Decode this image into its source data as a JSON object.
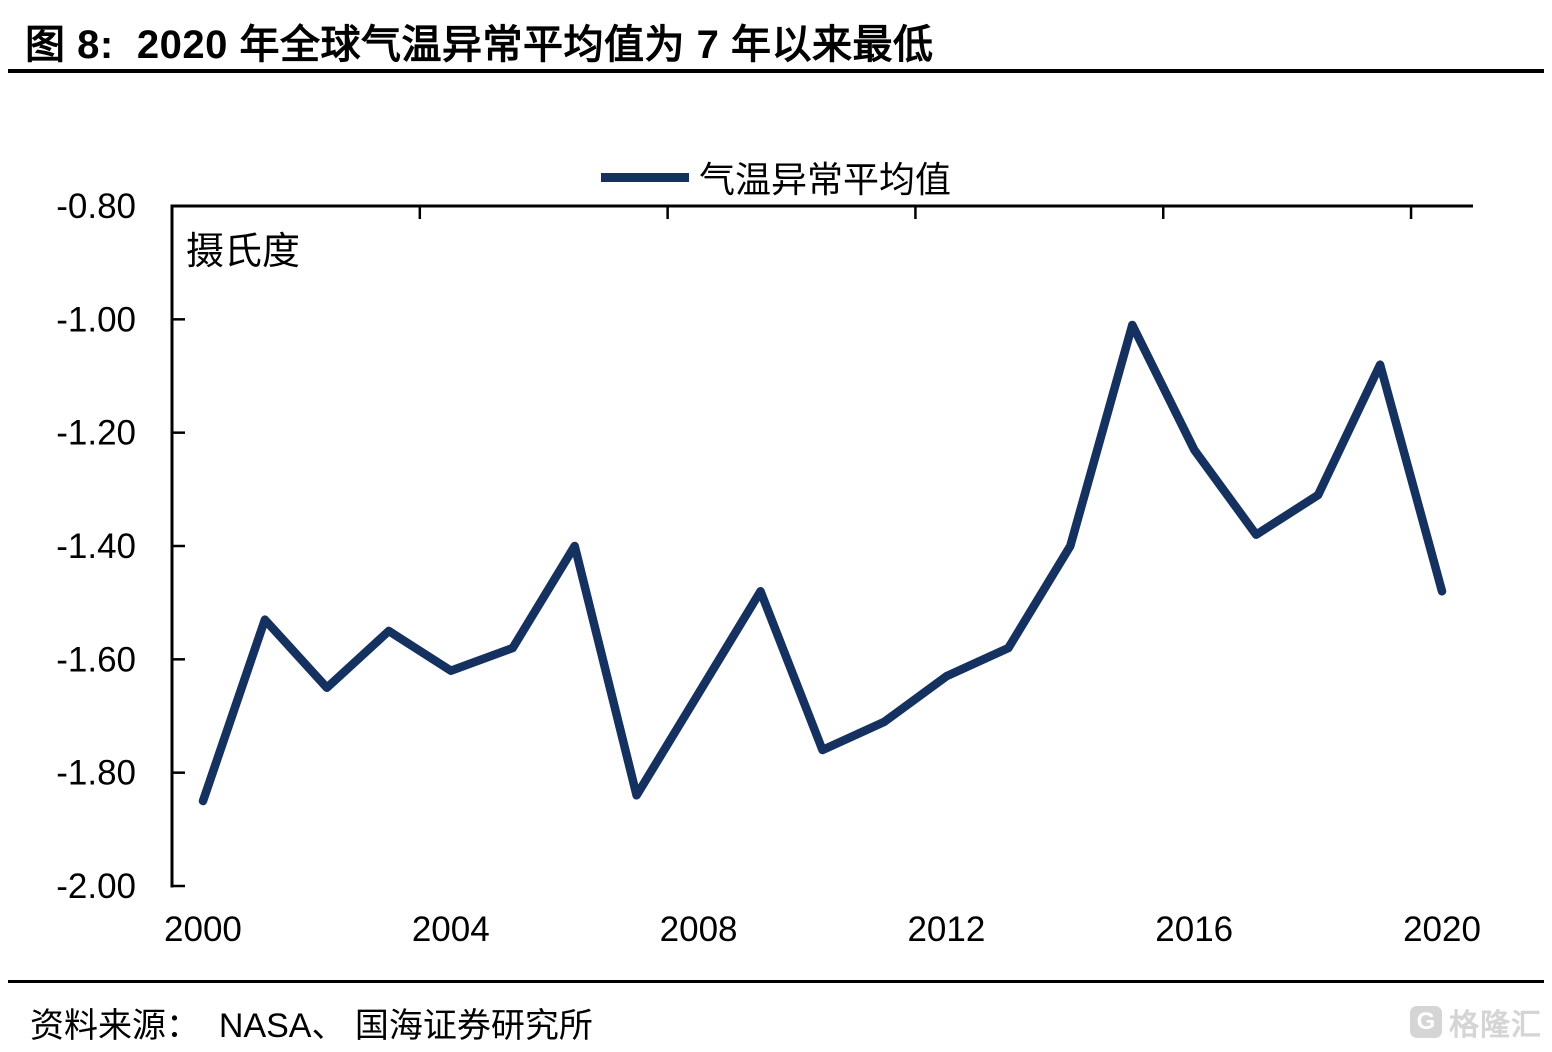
{
  "header": {
    "title": "图 8:  2020 年全球气温异常平均值为 7 年以来最低"
  },
  "footer": {
    "source": "资料来源：  NASA、 国海证券研究所",
    "logo_letter": "G",
    "logo_text": "格隆汇"
  },
  "chart_data": {
    "type": "line",
    "title": "图 8:  2020 年全球气温异常平均值为 7 年以来最低",
    "ylabel": "摄氏度",
    "xlabel": "",
    "x": [
      2000,
      2001,
      2002,
      2003,
      2004,
      2005,
      2006,
      2007,
      2008,
      2009,
      2010,
      2011,
      2012,
      2013,
      2014,
      2015,
      2016,
      2017,
      2018,
      2019,
      2020
    ],
    "series": [
      {
        "name": "气温异常平均值",
        "values": [
          -1.85,
          -1.53,
          -1.65,
          -1.55,
          -1.62,
          -1.58,
          -1.4,
          -1.84,
          -1.66,
          -1.48,
          -1.76,
          -1.71,
          -1.63,
          -1.58,
          -1.4,
          -1.01,
          -1.23,
          -1.38,
          -1.31,
          -1.08,
          -1.48
        ]
      }
    ],
    "ylim": [
      -2.0,
      -0.8
    ],
    "ytick_step": 0.2,
    "ytick_decimals": 2,
    "xticks": [
      2000,
      2004,
      2008,
      2012,
      2016,
      2020
    ],
    "grid": false,
    "legend_position": "top-center",
    "line_color": "#14315f",
    "axis_color": "#000000",
    "text_color": "#000000"
  }
}
